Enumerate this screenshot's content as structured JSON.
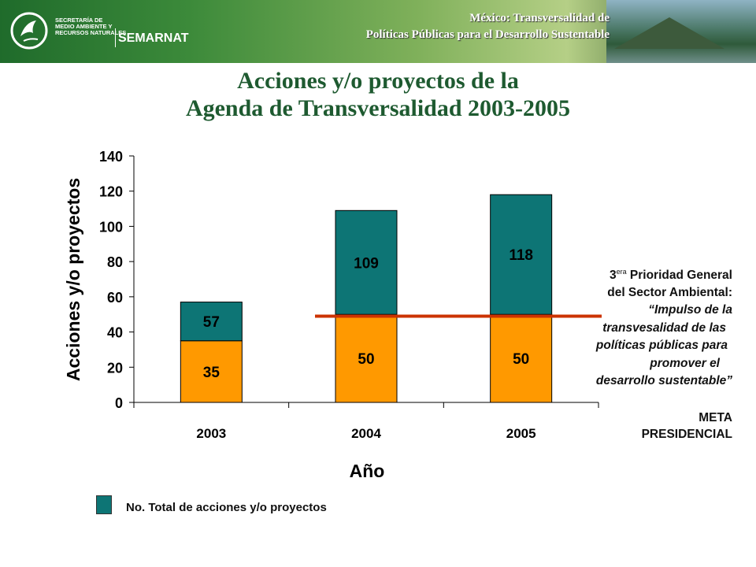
{
  "header": {
    "line1": "México: Transversalidad de",
    "line2": "Políticas Públicas para el Desarrollo Sustentable",
    "logo_secretaria": "SECRETARÍA DE\nMEDIO AMBIENTE Y\nRECURSOS NATURALES",
    "logo_name": "SEMARNAT"
  },
  "title": {
    "line1": "Acciones y/o proyectos de la",
    "line2": "Agenda de Transversalidad 2003-2005"
  },
  "chart_data": {
    "type": "bar",
    "stacked": true,
    "categories": [
      "2003",
      "2004",
      "2005"
    ],
    "series": [
      {
        "values": [
          35,
          50,
          50
        ],
        "color": "#ff9900"
      },
      {
        "name": "No. Total de acciones y/o proyectos",
        "values": [
          22,
          59,
          68
        ],
        "color": "#0d7575"
      }
    ],
    "bar_labels": {
      "bottom": [
        "35",
        "50",
        "50"
      ],
      "total": [
        "57",
        "109",
        "118"
      ]
    },
    "xlabel": "Año",
    "ylabel": "Acciones y/o proyectos",
    "ylim": [
      0,
      140
    ],
    "yticks": [
      0,
      20,
      40,
      60,
      80,
      100,
      120,
      140
    ],
    "grid": false,
    "reference_line": {
      "value": 49,
      "color": "#cc3300"
    },
    "legend": {
      "position": "bottom-left"
    }
  },
  "annotation": {
    "lines": [
      {
        "prefix": "3",
        "sup": "era",
        "text": " Prioridad General",
        "italic": false
      },
      {
        "text": "del Sector Ambiental:",
        "italic": false
      },
      {
        "text": "“Impulso de la",
        "italic": true
      },
      {
        "text": "transvesalidad de las",
        "italic": true
      },
      {
        "text": "políticas públicas para",
        "italic": true
      },
      {
        "text": "promover el",
        "italic": true
      },
      {
        "text": "desarrollo sustentable”",
        "italic": true
      }
    ]
  },
  "meta": {
    "line1": "META",
    "line2": "PRESIDENCIAL"
  },
  "legend_label": "No. Total de acciones y/o proyectos"
}
